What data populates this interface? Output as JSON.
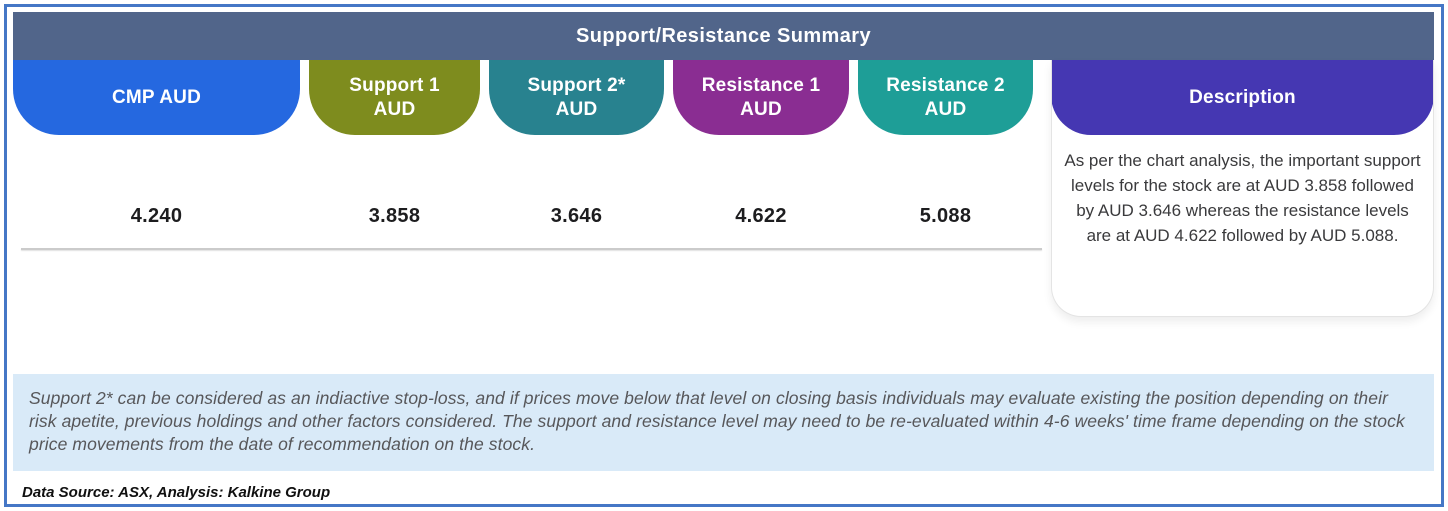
{
  "title": "Support/Resistance Summary",
  "theme": {
    "outer_border_color": "#4577C6",
    "titlebar_bg": "#51658A",
    "footnote_bg": "#D9EAF8",
    "divider_color": "#CBCBCB"
  },
  "table": {
    "columns": [
      {
        "label_line1": "CMP AUD",
        "label_line2": "",
        "color": "#2568E0",
        "value": "4.240"
      },
      {
        "label_line1": "Support 1",
        "label_line2": "AUD",
        "color": "#7E8C1E",
        "value": "3.858"
      },
      {
        "label_line1": "Support 2*",
        "label_line2": "AUD",
        "color": "#28828F",
        "value": "3.646"
      },
      {
        "label_line1": "Resistance 1",
        "label_line2": "AUD",
        "color": "#8A2D92",
        "value": "4.622"
      },
      {
        "label_line1": "Resistance 2",
        "label_line2": "AUD",
        "color": "#1E9E97",
        "value": "5.088"
      }
    ],
    "description": {
      "header": "Description",
      "header_color": "#4537B2",
      "text": "As per the chart analysis, the important support levels for the stock are at AUD 3.858 followed by AUD 3.646 whereas the resistance levels are at AUD 4.622 followed by AUD 5.088."
    }
  },
  "footnote": "Support 2* can be considered as an indiactive stop-loss, and if prices move below that level on closing basis individuals may evaluate existing the position depending on their risk apetite, previous holdings and other factors considered. The support and resistance level may need to be re-evaluated within 4-6 weeks' time frame depending on the stock price movements from  the date of recommendation on the stock.",
  "data_source": "Data Source: ASX, Analysis: Kalkine Group"
}
